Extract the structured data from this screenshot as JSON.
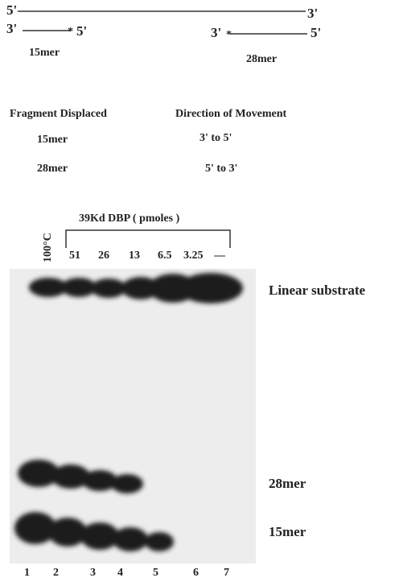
{
  "diagram": {
    "top_strand": {
      "left": "5'",
      "right": "3'"
    },
    "oligo_15mer": {
      "left": "3'",
      "right": "5'",
      "label": "15mer"
    },
    "oligo_28mer": {
      "left": "3'",
      "right": "5'",
      "label": "28mer"
    }
  },
  "table": {
    "headers": [
      "Fragment Displaced",
      "Direction of Movement"
    ],
    "rows": [
      [
        "15mer",
        "3' to 5'"
      ],
      [
        "28mer",
        "5' to 3'"
      ]
    ]
  },
  "gel": {
    "title": "39Kd DBP ( pmoles )",
    "control": "100°C",
    "amounts": [
      51,
      26,
      13,
      6.5,
      3.25,
      "—"
    ],
    "band_labels": [
      "Linear substrate",
      "28mer",
      "15mer"
    ],
    "lanes": [
      1,
      2,
      3,
      4,
      5,
      6,
      7
    ]
  }
}
